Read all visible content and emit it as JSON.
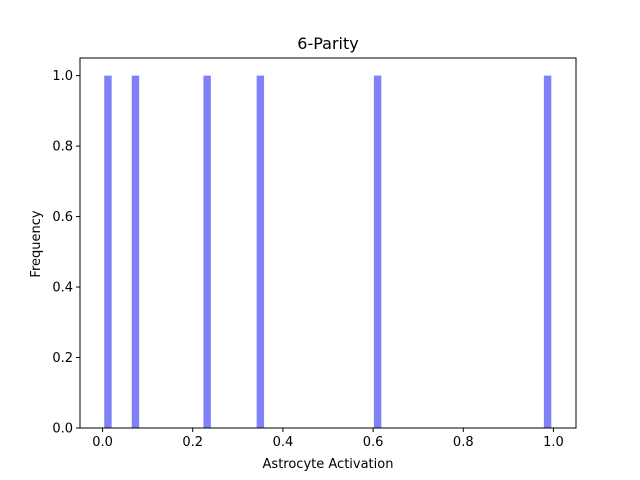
{
  "chart_data": {
    "type": "bar",
    "title": "6-Parity",
    "xlabel": "Astrocyte Activation",
    "ylabel": "Frequency",
    "xlim": [
      -0.05,
      1.05
    ],
    "ylim": [
      0,
      1.05
    ],
    "xticks": [
      0.0,
      0.2,
      0.4,
      0.6,
      0.8,
      1.0
    ],
    "xtick_labels": [
      "0.0",
      "0.2",
      "0.4",
      "0.6",
      "0.8",
      "1.0"
    ],
    "yticks": [
      0.0,
      0.2,
      0.4,
      0.6,
      0.8,
      1.0
    ],
    "ytick_labels": [
      "0.0",
      "0.2",
      "0.4",
      "0.6",
      "0.8",
      "1.0"
    ],
    "bin_width": 0.0165,
    "bars": [
      {
        "x": 0.012,
        "value": 1.0
      },
      {
        "x": 0.073,
        "value": 1.0
      },
      {
        "x": 0.232,
        "value": 1.0
      },
      {
        "x": 0.35,
        "value": 1.0
      },
      {
        "x": 0.61,
        "value": 1.0
      },
      {
        "x": 0.987,
        "value": 1.0
      }
    ],
    "bar_color": "#8080f8",
    "grid": false,
    "legend": "none"
  }
}
